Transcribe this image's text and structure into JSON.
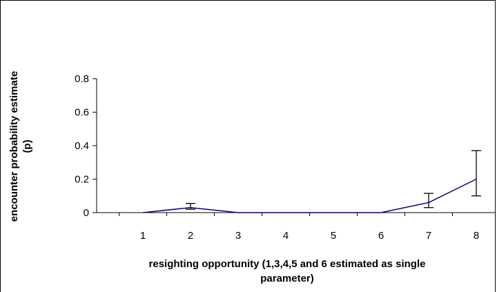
{
  "chart_data": {
    "type": "line",
    "title": "",
    "xlabel_lines": [
      "resighting opportunity (1,3,4,5 and 6 estimated as single",
      "parameter)"
    ],
    "ylabel_lines": [
      "encounter probability estimate",
      "(p)"
    ],
    "categories": [
      "1",
      "2",
      "3",
      "4",
      "5",
      "6",
      "7",
      "8"
    ],
    "y_ticks": [
      "0",
      "0.2",
      "0.4",
      "0.6",
      "0.8"
    ],
    "ylim": [
      0,
      0.8
    ],
    "grid": false,
    "legend": "none",
    "series": [
      {
        "values": [
          0,
          0.03,
          0,
          0,
          0,
          0,
          0.06,
          0.2
        ],
        "error_low": [
          null,
          0.02,
          null,
          null,
          null,
          null,
          0.03,
          0.1
        ],
        "error_high": [
          null,
          0.055,
          null,
          null,
          null,
          null,
          0.115,
          0.37
        ],
        "color": "#000080"
      }
    ]
  }
}
